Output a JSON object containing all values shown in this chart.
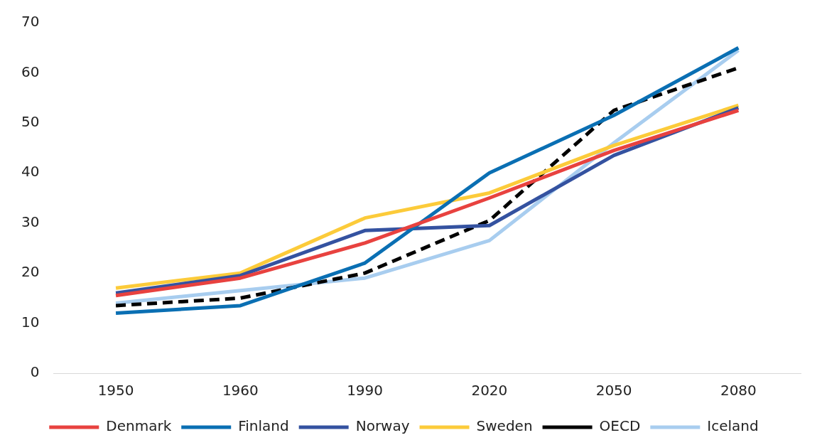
{
  "chart_data": {
    "type": "line",
    "categories": [
      "1950",
      "1960",
      "1990",
      "2020",
      "2050",
      "2080"
    ],
    "series": [
      {
        "name": "Denmark",
        "color": "#e8423f",
        "values": [
          15.5,
          19,
          26,
          35,
          44.5,
          52.5
        ]
      },
      {
        "name": "Finland",
        "color": "#0a6fb3",
        "values": [
          12,
          13.5,
          22,
          40,
          51.5,
          65
        ]
      },
      {
        "name": "Norway",
        "color": "#3452a0",
        "values": [
          16,
          19.5,
          28.5,
          29.5,
          43.5,
          53
        ]
      },
      {
        "name": "Sweden",
        "color": "#fccb3a",
        "values": [
          17,
          20,
          31,
          36,
          45.5,
          53.5
        ]
      },
      {
        "name": "OECD",
        "color": "#000000",
        "values": [
          13.5,
          15,
          20,
          30.5,
          52.5,
          61
        ],
        "line_style": "dashed"
      },
      {
        "name": "Iceland",
        "color": "#a8cdef",
        "values": [
          14,
          16.5,
          19,
          26.5,
          46,
          64.5
        ]
      }
    ],
    "ylim": [
      0,
      70
    ],
    "yticks": [
      0,
      10,
      20,
      30,
      40,
      50,
      60,
      70
    ],
    "grid": false,
    "legend": "bottom",
    "marker": "none",
    "line_style": "solid"
  }
}
